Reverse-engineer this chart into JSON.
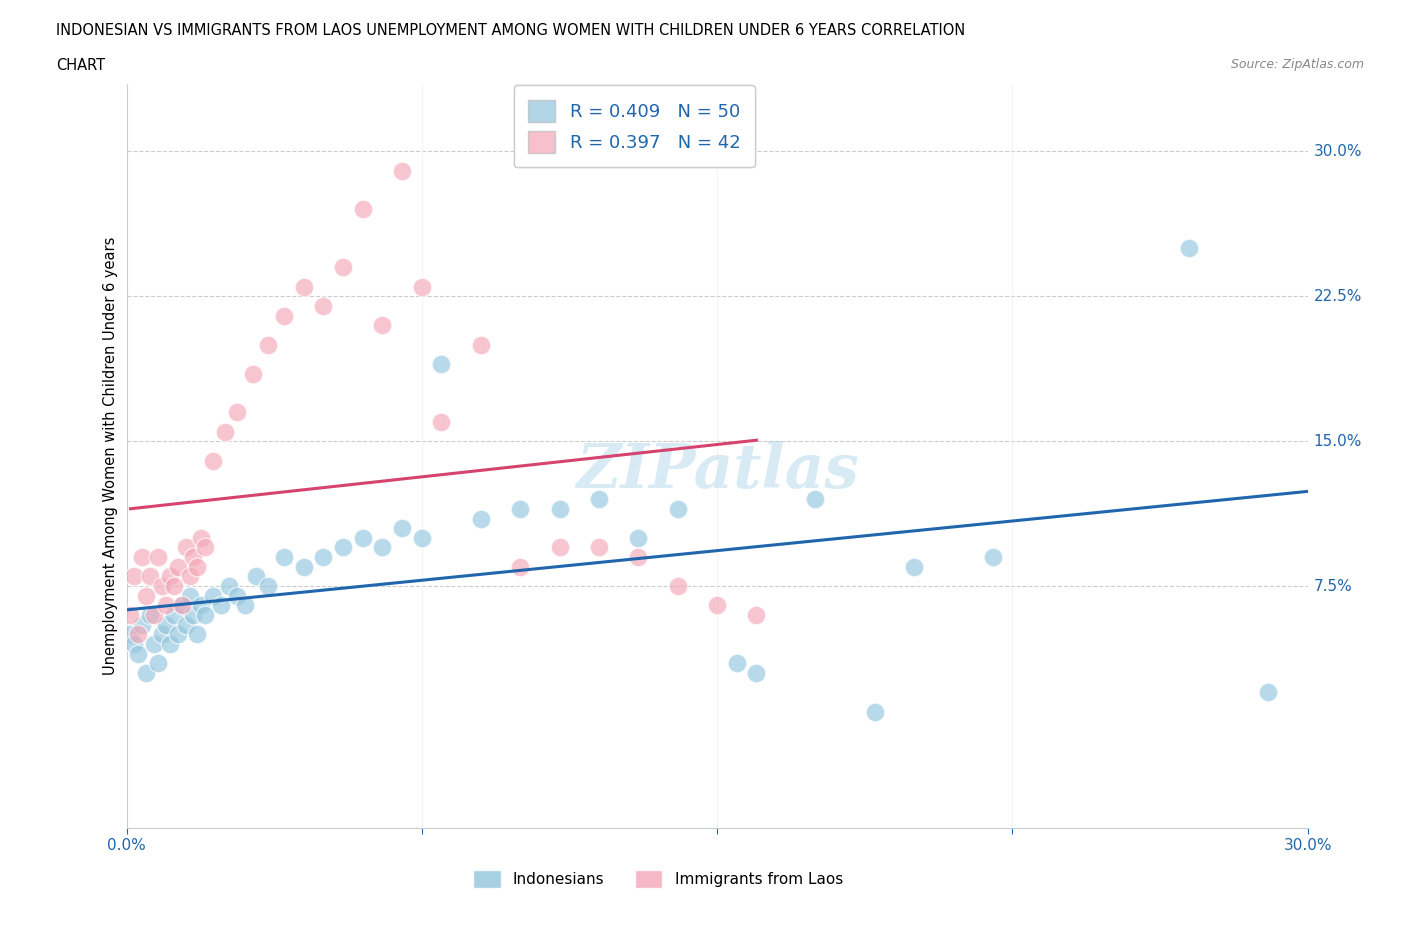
{
  "title_line1": "INDONESIAN VS IMMIGRANTS FROM LAOS UNEMPLOYMENT AMONG WOMEN WITH CHILDREN UNDER 6 YEARS CORRELATION",
  "title_line2": "CHART",
  "source": "Source: ZipAtlas.com",
  "ylabel": "Unemployment Among Women with Children Under 6 years",
  "xlim": [
    0.0,
    0.3
  ],
  "ylim": [
    -0.05,
    0.335
  ],
  "legend_R1": "0.409",
  "legend_N1": "50",
  "legend_R2": "0.397",
  "legend_N2": "42",
  "legend_label1": "Indonesians",
  "legend_label2": "Immigrants from Laos",
  "color_blue": "#92c5de",
  "color_pink": "#f4a6b8",
  "color_line_blue": "#2166ac",
  "color_line_pink": "#d6436e",
  "watermark": "ZIPatlas",
  "indo_x": [
    0.001,
    0.002,
    0.003,
    0.004,
    0.005,
    0.006,
    0.007,
    0.008,
    0.009,
    0.01,
    0.011,
    0.012,
    0.013,
    0.014,
    0.015,
    0.016,
    0.017,
    0.018,
    0.019,
    0.02,
    0.022,
    0.024,
    0.026,
    0.028,
    0.03,
    0.033,
    0.036,
    0.04,
    0.045,
    0.05,
    0.055,
    0.06,
    0.065,
    0.07,
    0.075,
    0.08,
    0.09,
    0.1,
    0.11,
    0.12,
    0.13,
    0.14,
    0.155,
    0.16,
    0.175,
    0.19,
    0.2,
    0.22,
    0.27,
    0.29
  ],
  "indo_y": [
    0.05,
    0.045,
    0.04,
    0.055,
    0.03,
    0.06,
    0.045,
    0.035,
    0.05,
    0.055,
    0.045,
    0.06,
    0.05,
    0.065,
    0.055,
    0.07,
    0.06,
    0.05,
    0.065,
    0.06,
    0.07,
    0.065,
    0.075,
    0.07,
    0.065,
    0.08,
    0.075,
    0.09,
    0.085,
    0.09,
    0.095,
    0.1,
    0.095,
    0.105,
    0.1,
    0.19,
    0.11,
    0.115,
    0.115,
    0.12,
    0.1,
    0.115,
    0.035,
    0.03,
    0.12,
    0.01,
    0.085,
    0.09,
    0.25,
    0.02
  ],
  "laos_x": [
    0.001,
    0.002,
    0.003,
    0.004,
    0.005,
    0.006,
    0.007,
    0.008,
    0.009,
    0.01,
    0.011,
    0.012,
    0.013,
    0.014,
    0.015,
    0.016,
    0.017,
    0.018,
    0.019,
    0.02,
    0.022,
    0.025,
    0.028,
    0.032,
    0.036,
    0.04,
    0.045,
    0.05,
    0.055,
    0.06,
    0.065,
    0.07,
    0.075,
    0.08,
    0.09,
    0.1,
    0.11,
    0.12,
    0.13,
    0.14,
    0.15,
    0.16
  ],
  "laos_y": [
    0.06,
    0.08,
    0.05,
    0.09,
    0.07,
    0.08,
    0.06,
    0.09,
    0.075,
    0.065,
    0.08,
    0.075,
    0.085,
    0.065,
    0.095,
    0.08,
    0.09,
    0.085,
    0.1,
    0.095,
    0.14,
    0.155,
    0.165,
    0.185,
    0.2,
    0.215,
    0.23,
    0.22,
    0.24,
    0.27,
    0.21,
    0.29,
    0.23,
    0.16,
    0.2,
    0.085,
    0.095,
    0.095,
    0.09,
    0.075,
    0.065,
    0.06
  ]
}
